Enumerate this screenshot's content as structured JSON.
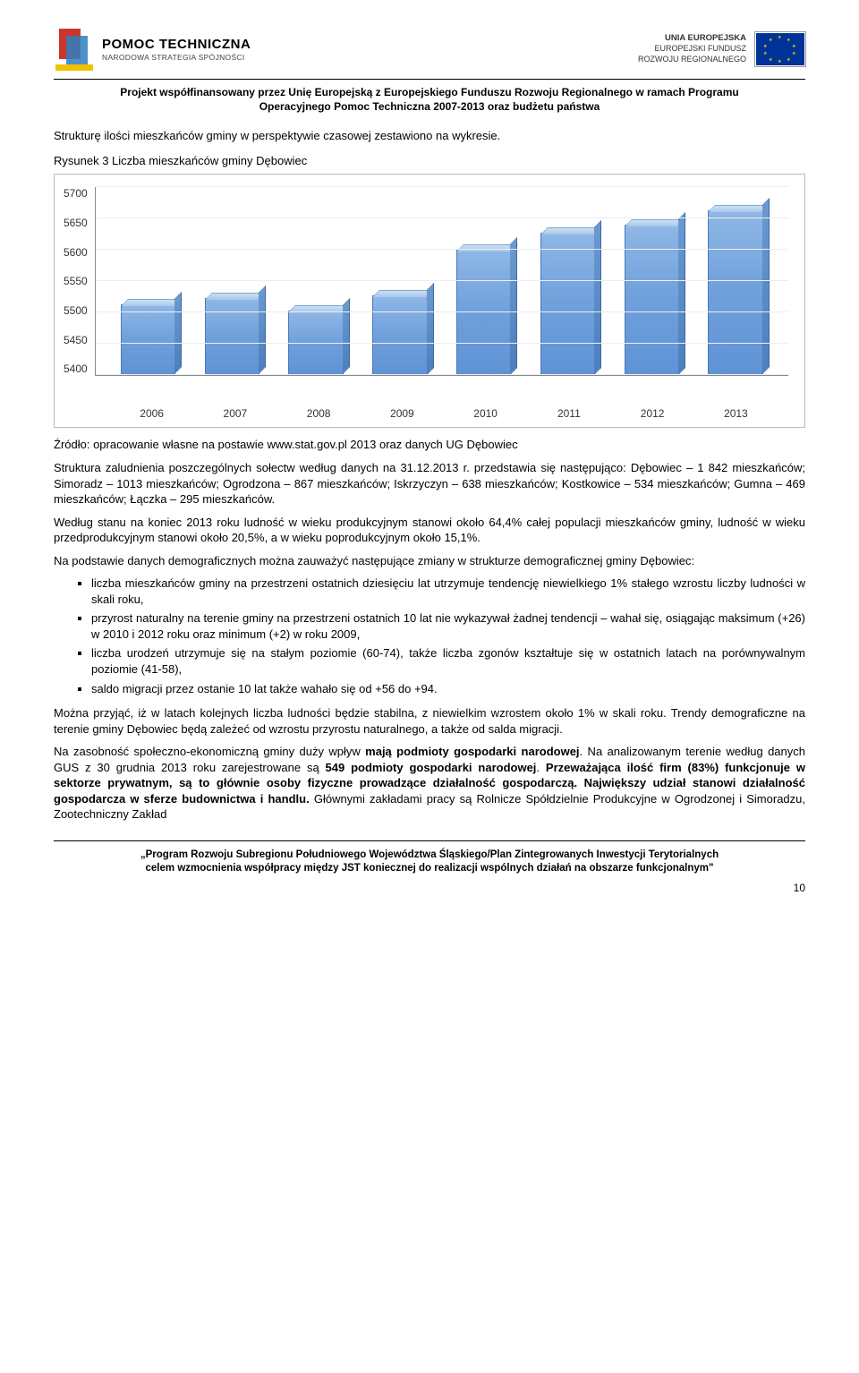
{
  "header": {
    "pt_title": "POMOC TECHNICZNA",
    "pt_subtitle": "NARODOWA STRATEGIA SPÓJNOŚCI",
    "eu_line1": "UNIA EUROPEJSKA",
    "eu_line2": "EUROPEJSKI FUNDUSZ",
    "eu_line3": "ROZWOJU REGIONALNEGO"
  },
  "cofinance": {
    "line1": "Projekt współfinansowany przez Unię Europejską z Europejskiego Funduszu Rozwoju Regionalnego w ramach Programu",
    "line2": "Operacyjnego Pomoc Techniczna 2007-2013 oraz budżetu państwa"
  },
  "intro": "Strukturę ilości mieszkańców gminy w perspektywie czasowej zestawiono na wykresie.",
  "fig_title": "Rysunek 3 Liczba mieszkańców gminy Dębowiec",
  "chart": {
    "type": "bar",
    "categories": [
      "2006",
      "2007",
      "2008",
      "2009",
      "2010",
      "2011",
      "2012",
      "2013"
    ],
    "values": [
      5510,
      5520,
      5500,
      5525,
      5598,
      5625,
      5638,
      5660
    ],
    "ylim": [
      5400,
      5700
    ],
    "ytick_step": 50,
    "yticks": [
      "5700",
      "5650",
      "5600",
      "5550",
      "5500",
      "5450",
      "5400"
    ],
    "bar_color": "#6fa0db",
    "bar_border": "#4a7ab8",
    "background_color": "#ffffff",
    "grid_color": "#eeeeee",
    "axis_color": "#888888",
    "label_fontsize": 12,
    "bar_width": 0.72
  },
  "source": "Źródło: opracowanie własne na postawie www.stat.gov.pl 2013 oraz danych UG Dębowiec",
  "para1": "Struktura zaludnienia poszczególnych sołectw według danych na 31.12.2013 r. przedstawia się następująco: Dębowiec – 1 842 mieszkańców; Simoradz – 1013 mieszkańców; Ogrodzona – 867 mieszkańców; Iskrzyczyn – 638 mieszkańców; Kostkowice – 534 mieszkańców; Gumna – 469 mieszkańców; Łączka – 295 mieszkańców.",
  "para2": "Według stanu na koniec 2013 roku ludność w wieku produkcyjnym stanowi około 64,4% całej populacji mieszkańców gminy, ludność w wieku przedprodukcyjnym stanowi około 20,5%, a w wieku poprodukcyjnym około 15,1%.",
  "para3": "Na podstawie danych demograficznych można zauważyć następujące zmiany w strukturze demograficznej gminy Dębowiec:",
  "bullets": [
    "liczba mieszkańców gminy na przestrzeni ostatnich dziesięciu lat utrzymuje tendencję niewielkiego 1% stałego wzrostu liczby ludności w skali roku,",
    "przyrost naturalny na terenie gminy na przestrzeni ostatnich 10 lat nie wykazywał żadnej tendencji – wahał się, osiągając maksimum (+26) w 2010 i 2012 roku oraz minimum (+2) w roku 2009,",
    "liczba urodzeń utrzymuje się na stałym poziomie (60-74), także liczba zgonów kształtuje się w ostatnich latach na porównywalnym poziomie (41-58),",
    "saldo migracji przez ostanie 10 lat także wahało się od +56 do +94."
  ],
  "para4": "Można przyjąć, iż w latach kolejnych liczba ludności będzie stabilna, z niewielkim wzrostem około 1% w skali roku. Trendy demograficzne na terenie gminy Dębowiec będą zależeć od wzrostu przyrostu naturalnego, a także od salda migracji.",
  "para5_a": "Na zasobność społeczno-ekonomiczną gminy duży wpływ ",
  "para5_b": "mają podmioty gospodarki narodowej",
  "para5_c": ". Na analizowanym terenie według danych GUS z 30 grudnia 2013 roku zarejestrowane są ",
  "para5_d": "549 podmioty gospodarki narodowej",
  "para5_e": ". ",
  "para5_f": "Przeważająca ilość firm (83%) funkcjonuje w sektorze prywatnym, są to głównie osoby fizyczne prowadzące działalność gospodarczą. Największy udział stanowi działalność gospodarcza w sferze budownictwa i handlu.",
  "para5_g": " Głównymi zakładami pracy są Rolnicze Spółdzielnie Produkcyjne w Ogrodzonej i Simoradzu, Zootechniczny Zakład",
  "footer": {
    "line1": "„Program Rozwoju Subregionu Południowego Województwa Śląskiego/Plan Zintegrowanych Inwestycji Terytorialnych",
    "line2": "celem wzmocnienia współpracy między JST koniecznej do realizacji wspólnych działań na obszarze funkcjonalnym\""
  },
  "page_number": "10"
}
